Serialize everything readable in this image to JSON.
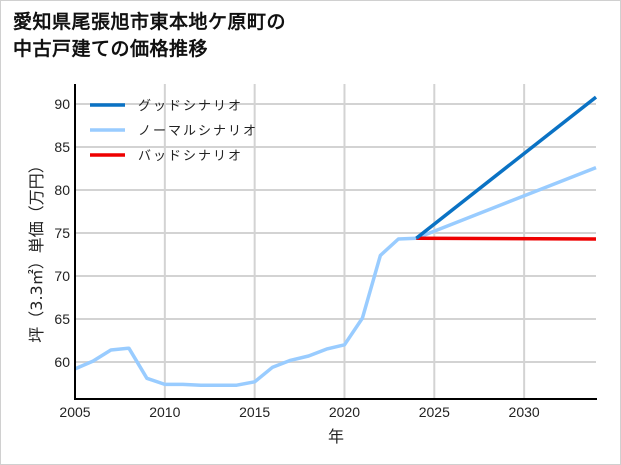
{
  "title": {
    "line1": "愛知県尾張旭市東本地ケ原町の",
    "line2": "中古戸建ての価格推移"
  },
  "colors": {
    "good": "#0a72c4",
    "normal": "#99ccff",
    "bad": "#ee0000",
    "grid": "#d3d3d3",
    "axis": "#000000"
  },
  "chart_data": {
    "type": "line",
    "title": "愛知県尾張旭市東本地ケ原町の中古戸建ての価格推移",
    "xlabel": "年",
    "ylabel": "坪（3.3㎡）単価（万円）",
    "xlim": [
      2005,
      2034
    ],
    "ylim": [
      55.5,
      92.5
    ],
    "x_ticks": [
      2005,
      2010,
      2015,
      2020,
      2025,
      2030
    ],
    "y_ticks": [
      60,
      65,
      70,
      75,
      80,
      85,
      90
    ],
    "grid": true,
    "legend_position": "upper left",
    "series": [
      {
        "name": "グッドシナリオ",
        "color": "#0a72c4",
        "x": [
          2024,
          2034
        ],
        "values": [
          74.4,
          90.8
        ]
      },
      {
        "name": "ノーマルシナリオ",
        "color": "#99ccff",
        "x": [
          2005,
          2006,
          2007,
          2008,
          2009,
          2010,
          2011,
          2012,
          2013,
          2014,
          2015,
          2016,
          2017,
          2018,
          2019,
          2020,
          2021,
          2022,
          2023,
          2024,
          2034
        ],
        "values": [
          59.2,
          60.1,
          61.4,
          61.6,
          58.1,
          57.4,
          57.4,
          57.3,
          57.3,
          57.3,
          57.7,
          59.4,
          60.2,
          60.7,
          61.5,
          62.0,
          65.1,
          72.4,
          74.3,
          74.4,
          82.6
        ]
      },
      {
        "name": "バッドシナリオ",
        "color": "#ee0000",
        "x": [
          2024,
          2034
        ],
        "values": [
          74.4,
          74.3
        ]
      }
    ]
  },
  "axes": {
    "x_ticks": [
      "2005",
      "2010",
      "2015",
      "2020",
      "2025",
      "2030"
    ],
    "y_ticks": [
      "60",
      "65",
      "70",
      "75",
      "80",
      "85",
      "90"
    ],
    "xlabel": "年",
    "ylabel": "坪（3.3㎡）単価（万円）"
  },
  "legend": [
    {
      "label": "グッドシナリオ",
      "color": "#0a72c4"
    },
    {
      "label": "ノーマルシナリオ",
      "color": "#99ccff"
    },
    {
      "label": "バッドシナリオ",
      "color": "#ee0000"
    }
  ]
}
